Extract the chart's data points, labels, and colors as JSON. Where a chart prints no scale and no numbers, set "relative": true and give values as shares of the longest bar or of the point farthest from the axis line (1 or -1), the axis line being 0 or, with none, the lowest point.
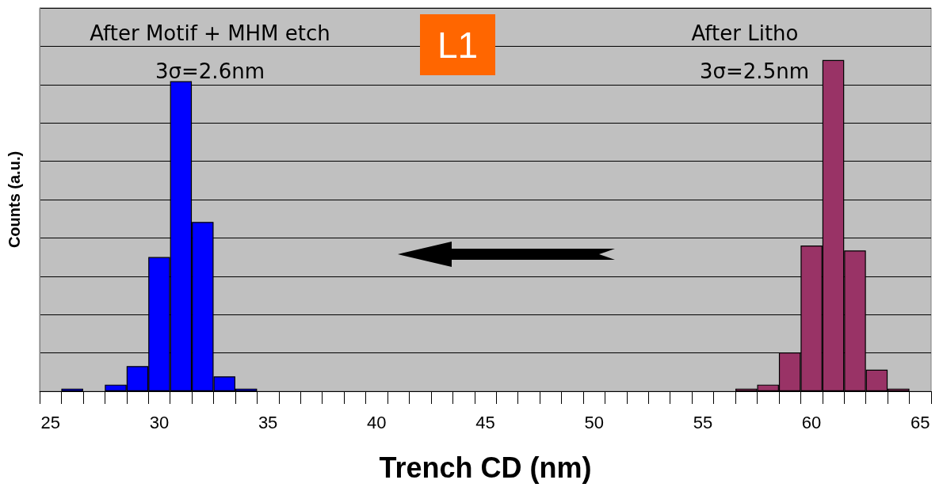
{
  "chart_data": {
    "type": "bar",
    "xlabel": "Trench CD (nm)",
    "ylabel": "Counts (a.u.)",
    "relative": true,
    "grid": "y",
    "categories": [
      "25",
      null,
      null,
      null,
      null,
      "30",
      null,
      null,
      null,
      null,
      "35",
      null,
      null,
      null,
      null,
      "40",
      null,
      null,
      null,
      null,
      "45",
      null,
      null,
      null,
      null,
      "50",
      null,
      null,
      null,
      null,
      "55",
      null,
      null,
      null,
      null,
      "60",
      null,
      null,
      null,
      null,
      "65"
    ],
    "series": [
      {
        "color": "#0000ff",
        "values": [
          null,
          0.008,
          null,
          0.02,
          0.076,
          0.405,
          0.936,
          0.511,
          0.045,
          0.008,
          null,
          null,
          null,
          null,
          null,
          null,
          null,
          null,
          null,
          null,
          null,
          null,
          null,
          null,
          null,
          null,
          null,
          null,
          null,
          null,
          null,
          null,
          null,
          null,
          null,
          null,
          null,
          null,
          null,
          null,
          null
        ]
      },
      {
        "color": "#993366",
        "values": [
          null,
          null,
          null,
          null,
          null,
          null,
          null,
          null,
          null,
          null,
          null,
          null,
          null,
          null,
          null,
          null,
          null,
          null,
          null,
          null,
          null,
          null,
          null,
          null,
          null,
          null,
          null,
          null,
          null,
          null,
          null,
          null,
          0.008,
          0.02,
          0.117,
          0.44,
          1,
          0.425,
          0.065,
          0.008,
          null
        ]
      }
    ],
    "annotations": [
      "After Motif + MHM etch",
      "3σ=2.6nm",
      "After Litho",
      "3σ=2.5nm",
      "L1"
    ]
  }
}
